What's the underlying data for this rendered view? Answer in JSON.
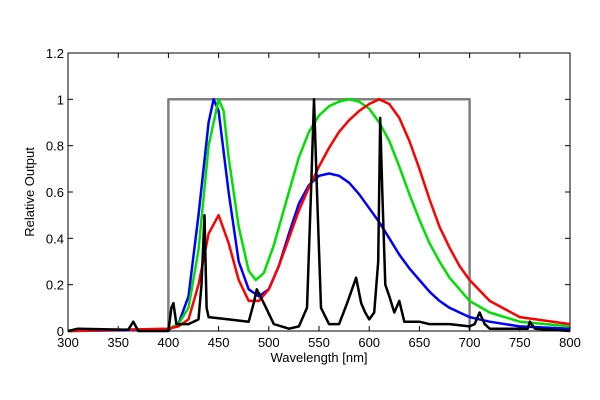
{
  "chart_data": {
    "type": "line",
    "title": "",
    "xlabel": "Wavelength [nm]",
    "ylabel": "Relative Output",
    "xlim": [
      300,
      800
    ],
    "ylim": [
      0,
      1.2
    ],
    "xticks": [
      "300",
      "350",
      "400",
      "450",
      "500",
      "550",
      "600",
      "650",
      "700",
      "750",
      "800"
    ],
    "yticks": [
      "0",
      "0.2",
      "0.4",
      "0.6",
      "0.8",
      "1",
      "1.2"
    ],
    "grid": false,
    "legend": "none",
    "series": [
      {
        "color": "#808080",
        "x": [
          400,
          400,
          700,
          700
        ],
        "y": [
          0,
          1,
          1,
          0
        ]
      },
      {
        "color": "#0000ff",
        "x": [
          300,
          400,
          410,
          420,
          430,
          440,
          445,
          450,
          460,
          470,
          480,
          490,
          500,
          510,
          520,
          530,
          540,
          550,
          560,
          570,
          580,
          590,
          600,
          610,
          620,
          630,
          640,
          650,
          660,
          670,
          680,
          690,
          700,
          720,
          750,
          800
        ],
        "y": [
          0,
          0.005,
          0.03,
          0.15,
          0.5,
          0.9,
          1.0,
          0.95,
          0.6,
          0.3,
          0.18,
          0.15,
          0.18,
          0.28,
          0.42,
          0.55,
          0.63,
          0.67,
          0.68,
          0.67,
          0.64,
          0.59,
          0.53,
          0.47,
          0.4,
          0.33,
          0.27,
          0.22,
          0.17,
          0.13,
          0.1,
          0.08,
          0.06,
          0.04,
          0.02,
          0.01
        ]
      },
      {
        "color": "#00e000",
        "x": [
          300,
          400,
          410,
          420,
          430,
          440,
          450,
          455,
          460,
          470,
          480,
          487,
          495,
          505,
          520,
          530,
          540,
          550,
          560,
          570,
          580,
          590,
          600,
          610,
          620,
          630,
          640,
          650,
          660,
          670,
          680,
          690,
          700,
          720,
          750,
          800
        ],
        "y": [
          0,
          0.01,
          0.03,
          0.1,
          0.35,
          0.8,
          1.0,
          0.95,
          0.75,
          0.45,
          0.26,
          0.22,
          0.25,
          0.37,
          0.6,
          0.75,
          0.86,
          0.93,
          0.97,
          0.99,
          1.0,
          0.99,
          0.96,
          0.9,
          0.82,
          0.71,
          0.59,
          0.48,
          0.38,
          0.3,
          0.23,
          0.18,
          0.13,
          0.08,
          0.04,
          0.02
        ]
      },
      {
        "color": "#ff0000",
        "x": [
          300,
          400,
          410,
          420,
          430,
          440,
          450,
          460,
          470,
          480,
          490,
          500,
          510,
          520,
          530,
          540,
          550,
          560,
          570,
          580,
          590,
          600,
          610,
          620,
          630,
          640,
          650,
          660,
          670,
          680,
          690,
          700,
          720,
          750,
          800
        ],
        "y": [
          0,
          0.01,
          0.02,
          0.05,
          0.2,
          0.42,
          0.5,
          0.38,
          0.22,
          0.13,
          0.13,
          0.18,
          0.28,
          0.4,
          0.52,
          0.62,
          0.71,
          0.79,
          0.86,
          0.91,
          0.95,
          0.98,
          1.0,
          0.98,
          0.92,
          0.82,
          0.7,
          0.57,
          0.45,
          0.36,
          0.28,
          0.22,
          0.13,
          0.06,
          0.03
        ]
      },
      {
        "color": "#000000",
        "x": [
          300,
          310,
          360,
          365,
          370,
          400,
          403,
          405,
          408,
          420,
          430,
          433,
          436,
          438,
          440,
          460,
          480,
          485,
          488,
          495,
          505,
          520,
          530,
          538,
          542,
          545,
          548,
          552,
          560,
          570,
          578,
          587,
          592,
          596,
          600,
          605,
          609,
          611,
          613,
          616,
          620,
          625,
          630,
          635,
          650,
          660,
          680,
          700,
          705,
          710,
          715,
          720,
          758,
          760,
          765,
          800
        ],
        "y": [
          0,
          0.01,
          0.005,
          0.04,
          0,
          0,
          0.1,
          0.12,
          0.03,
          0.03,
          0.05,
          0.2,
          0.5,
          0.1,
          0.06,
          0.05,
          0.04,
          0.12,
          0.18,
          0.12,
          0.03,
          0.01,
          0.02,
          0.1,
          0.6,
          1.0,
          0.6,
          0.1,
          0.03,
          0.03,
          0.12,
          0.23,
          0.12,
          0.08,
          0.05,
          0.08,
          0.3,
          0.92,
          0.6,
          0.2,
          0.15,
          0.08,
          0.13,
          0.04,
          0.04,
          0.03,
          0.03,
          0.02,
          0.03,
          0.08,
          0.03,
          0.01,
          0.01,
          0.04,
          0.01,
          0
        ]
      }
    ]
  }
}
